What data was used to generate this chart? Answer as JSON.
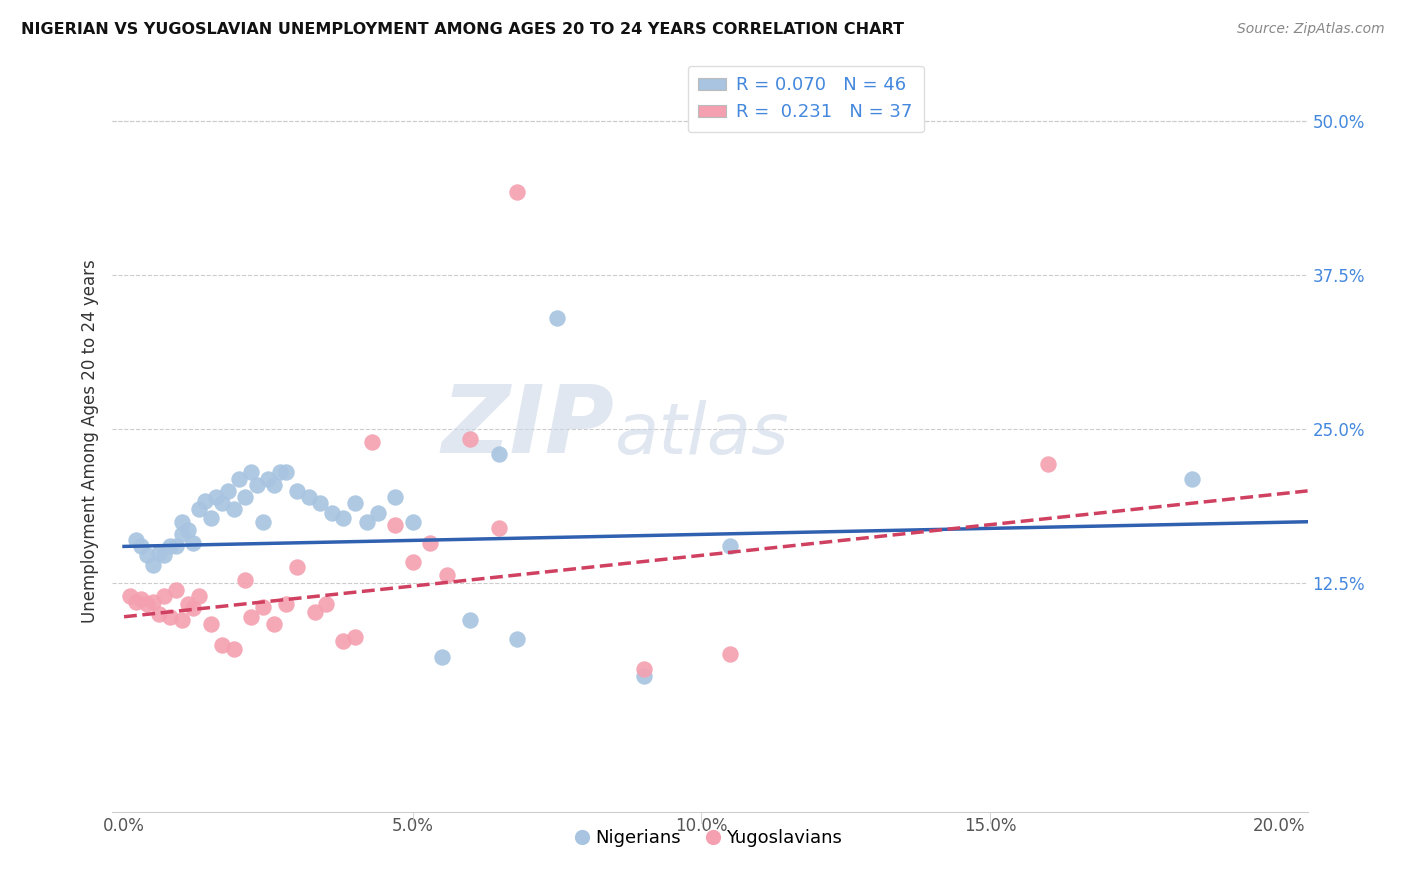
{
  "title": "NIGERIAN VS YUGOSLAVIAN UNEMPLOYMENT AMONG AGES 20 TO 24 YEARS CORRELATION CHART",
  "source": "Source: ZipAtlas.com",
  "ylabel": "Unemployment Among Ages 20 to 24 years",
  "xlabel_ticks": [
    "0.0%",
    "5.0%",
    "10.0%",
    "15.0%",
    "20.0%"
  ],
  "xlabel_vals": [
    0.0,
    0.05,
    0.1,
    0.15,
    0.2
  ],
  "ylabel_ticks": [
    "12.5%",
    "25.0%",
    "37.5%",
    "50.0%"
  ],
  "ylabel_vals": [
    0.125,
    0.25,
    0.375,
    0.5
  ],
  "xlim": [
    -0.002,
    0.205
  ],
  "ylim": [
    -0.06,
    0.54
  ],
  "nigerian_R": 0.07,
  "nigerian_N": 46,
  "yugoslavian_R": 0.231,
  "yugoslavian_N": 37,
  "nigerian_color": "#a8c4e0",
  "yugoslavian_color": "#f4a0b0",
  "nigerian_line_color": "#3060b0",
  "yugoslavian_line_color": "#d04060",
  "watermark_zip": "ZIP",
  "watermark_atlas": "atlas",
  "nigerian_x": [
    0.002,
    0.003,
    0.004,
    0.005,
    0.006,
    0.007,
    0.008,
    0.009,
    0.01,
    0.01,
    0.011,
    0.012,
    0.013,
    0.014,
    0.015,
    0.016,
    0.017,
    0.018,
    0.019,
    0.02,
    0.021,
    0.022,
    0.023,
    0.024,
    0.025,
    0.026,
    0.027,
    0.028,
    0.03,
    0.032,
    0.034,
    0.036,
    0.038,
    0.04,
    0.042,
    0.044,
    0.047,
    0.05,
    0.055,
    0.06,
    0.065,
    0.068,
    0.075,
    0.09,
    0.105,
    0.185
  ],
  "nigerian_y": [
    0.16,
    0.155,
    0.148,
    0.14,
    0.15,
    0.148,
    0.155,
    0.155,
    0.165,
    0.175,
    0.168,
    0.158,
    0.185,
    0.192,
    0.178,
    0.195,
    0.19,
    0.2,
    0.185,
    0.21,
    0.195,
    0.215,
    0.205,
    0.175,
    0.21,
    0.205,
    0.215,
    0.215,
    0.2,
    0.195,
    0.19,
    0.182,
    0.178,
    0.19,
    0.175,
    0.182,
    0.195,
    0.175,
    0.065,
    0.095,
    0.23,
    0.08,
    0.34,
    0.05,
    0.155,
    0.21
  ],
  "yugoslavian_x": [
    0.001,
    0.002,
    0.003,
    0.004,
    0.005,
    0.006,
    0.007,
    0.008,
    0.009,
    0.01,
    0.011,
    0.012,
    0.013,
    0.015,
    0.017,
    0.019,
    0.021,
    0.022,
    0.024,
    0.026,
    0.028,
    0.03,
    0.033,
    0.035,
    0.038,
    0.04,
    0.043,
    0.047,
    0.05,
    0.053,
    0.056,
    0.06,
    0.065,
    0.068,
    0.09,
    0.105,
    0.16
  ],
  "yugoslavian_y": [
    0.115,
    0.11,
    0.112,
    0.108,
    0.11,
    0.1,
    0.115,
    0.098,
    0.12,
    0.095,
    0.108,
    0.105,
    0.115,
    0.092,
    0.075,
    0.072,
    0.128,
    0.098,
    0.106,
    0.092,
    0.108,
    0.138,
    0.102,
    0.108,
    0.078,
    0.082,
    0.24,
    0.172,
    0.142,
    0.158,
    0.132,
    0.242,
    0.17,
    0.442,
    0.056,
    0.068,
    0.222
  ],
  "nigerian_line_x0": 0.0,
  "nigerian_line_x1": 0.205,
  "nigerian_line_y0": 0.155,
  "nigerian_line_y1": 0.175,
  "yugoslavian_line_x0": 0.0,
  "yugoslavian_line_x1": 0.205,
  "yugoslavian_line_y0": 0.098,
  "yugoslavian_line_y1": 0.2
}
